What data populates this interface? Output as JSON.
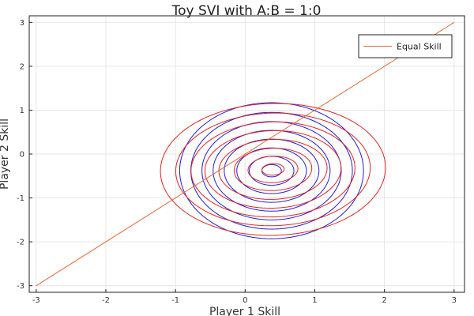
{
  "chart_data": {
    "type": "line",
    "title": "Toy SVI with A:B = 1:0",
    "xlabel": "Player 1 Skill",
    "ylabel": "Player 2 Skill",
    "xlim": [
      -3.1,
      3.15
    ],
    "ylim": [
      -3.15,
      3.15
    ],
    "xticks": [
      -3,
      -2,
      -1,
      0,
      1,
      2,
      3
    ],
    "yticks": [
      -3,
      -2,
      -1,
      0,
      1,
      2,
      3
    ],
    "grid": true,
    "legend": {
      "position": "top-right",
      "entries": [
        "Equal Skill"
      ]
    },
    "series": [
      {
        "name": "Equal Skill",
        "color": "#e26a3a",
        "x": [
          -3,
          3
        ],
        "y": [
          -3,
          3
        ]
      }
    ],
    "contours": [
      {
        "color": "#1f1fd6",
        "center": [
          0.38,
          -0.38
        ],
        "levels": [
          {
            "rx": 1.32,
            "ry": 1.55,
            "tilt": 0.0
          },
          {
            "rx": 1.16,
            "ry": 1.33,
            "tilt": 0.0
          },
          {
            "rx": 1.0,
            "ry": 1.12,
            "tilt": 0.0
          },
          {
            "rx": 0.84,
            "ry": 0.92,
            "tilt": 0.0
          },
          {
            "rx": 0.68,
            "ry": 0.72,
            "tilt": 0.0
          },
          {
            "rx": 0.5,
            "ry": 0.52,
            "tilt": 0.0
          },
          {
            "rx": 0.32,
            "ry": 0.33,
            "tilt": 0.0
          },
          {
            "rx": 0.14,
            "ry": 0.14,
            "tilt": 0.0
          }
        ]
      },
      {
        "color": "#e02424",
        "center": [
          0.4,
          -0.35
        ],
        "levels": [
          {
            "rx": 1.62,
            "ry": 1.5,
            "tilt": 0.18
          },
          {
            "rx": 1.4,
            "ry": 1.28,
            "tilt": 0.18
          },
          {
            "rx": 1.18,
            "ry": 1.08,
            "tilt": 0.18
          },
          {
            "rx": 0.98,
            "ry": 0.88,
            "tilt": 0.18
          },
          {
            "rx": 0.78,
            "ry": 0.68,
            "tilt": 0.18
          },
          {
            "rx": 0.56,
            "ry": 0.48,
            "tilt": 0.18
          },
          {
            "rx": 0.36,
            "ry": 0.3,
            "tilt": 0.18
          },
          {
            "rx": 0.16,
            "ry": 0.13,
            "tilt": 0.18
          }
        ]
      }
    ]
  }
}
